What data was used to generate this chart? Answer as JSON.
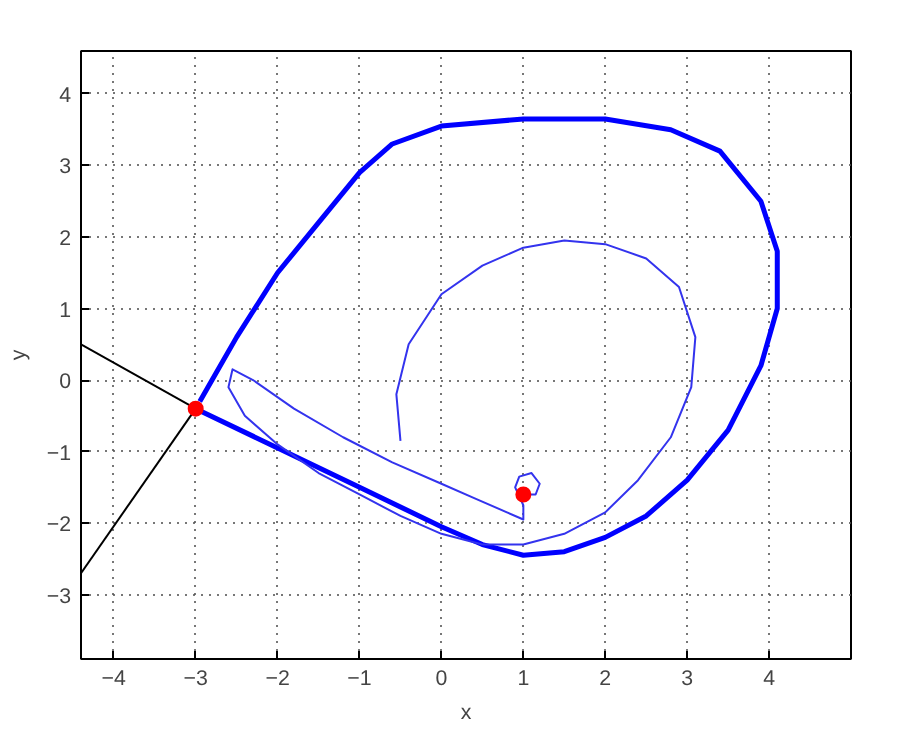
{
  "chart_data": {
    "type": "line",
    "xlabel": "x",
    "ylabel": "y",
    "xlim": [
      -4.4,
      5
    ],
    "ylim": [
      -3.9,
      4.6
    ],
    "xticks": [
      -4,
      -3,
      -2,
      -1,
      0,
      1,
      2,
      3,
      4
    ],
    "yticks": [
      -3,
      -2,
      -1,
      0,
      1,
      2,
      3,
      4
    ],
    "grid": true,
    "series": [
      {
        "color": "#0000ff",
        "x": [
          -3,
          -2,
          -1,
          0,
          0.5,
          1,
          1.5,
          2,
          2.5,
          3,
          3.5,
          3.9,
          4.1,
          4.1,
          3.9,
          3.4,
          2.8,
          2,
          1,
          0,
          -0.6,
          -1,
          -1.5,
          -2,
          -2.5,
          -2.8,
          -2.95
        ],
        "values": [
          -0.4,
          -0.95,
          -1.5,
          -2.05,
          -2.3,
          -2.45,
          -2.4,
          -2.2,
          -1.9,
          -1.4,
          -0.7,
          0.2,
          1,
          1.8,
          2.5,
          3.2,
          3.5,
          3.65,
          3.65,
          3.55,
          3.3,
          2.9,
          2.2,
          1.5,
          0.6,
          0,
          -0.3
        ]
      },
      {
        "color": "#3333ee",
        "x": [
          -0.5,
          -0.55,
          -0.4,
          0,
          0.5,
          1,
          1.5,
          2,
          2.5,
          2.9,
          3.1,
          3.05,
          2.8,
          2.4,
          2,
          1.5,
          1,
          0.5,
          0,
          -0.5,
          -1,
          -1.5,
          -2,
          -2.4,
          -2.6,
          -2.55,
          -2.3,
          -1.8,
          -1.2,
          -0.6,
          0,
          0.4,
          0.8,
          1.0,
          1.0,
          0.9,
          0.95,
          1.1,
          1.2,
          1.15,
          1.0
        ],
        "values": [
          -0.85,
          -0.2,
          0.5,
          1.2,
          1.6,
          1.85,
          1.95,
          1.9,
          1.7,
          1.3,
          0.6,
          -0.1,
          -0.8,
          -1.4,
          -1.85,
          -2.15,
          -2.3,
          -2.3,
          -2.15,
          -1.9,
          -1.6,
          -1.3,
          -0.9,
          -0.5,
          -0.1,
          0.15,
          0.0,
          -0.4,
          -0.8,
          -1.15,
          -1.45,
          -1.65,
          -1.85,
          -1.95,
          -1.75,
          -1.5,
          -1.35,
          -1.3,
          -1.45,
          -1.6,
          -1.6
        ]
      },
      {
        "color": "#000000",
        "x": [
          -4.4,
          -3
        ],
        "values": [
          0.5,
          -0.4
        ]
      },
      {
        "color": "#000000",
        "x": [
          -4.4,
          -3
        ],
        "values": [
          -2.7,
          -0.4
        ]
      },
      {
        "type": "scatter",
        "color": "#ff0000",
        "marker": "circle",
        "x": [
          -3,
          1
        ],
        "values": [
          -0.4,
          -1.6
        ]
      }
    ]
  }
}
